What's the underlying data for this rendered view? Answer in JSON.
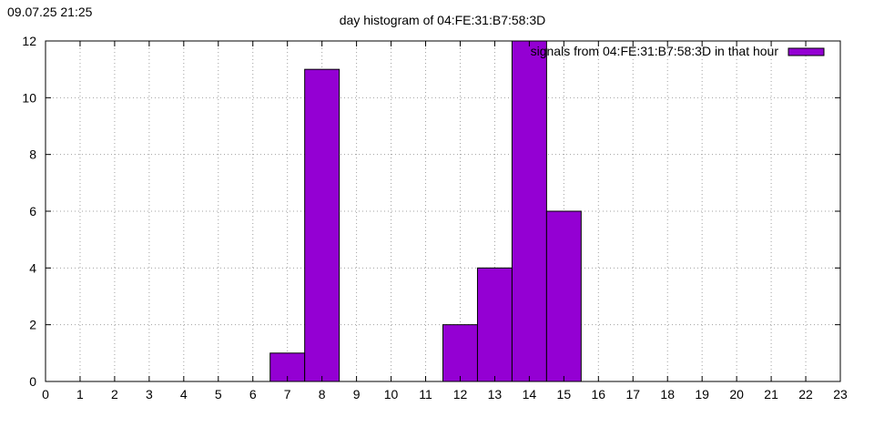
{
  "timestamp": "09.07.25 21:25",
  "chart_data": {
    "type": "bar",
    "title": "day histogram of 04:FE:31:B7:58:3D",
    "xlabel": "",
    "ylabel": "",
    "categories": [
      0,
      1,
      2,
      3,
      4,
      5,
      6,
      7,
      8,
      9,
      10,
      11,
      12,
      13,
      14,
      15,
      16,
      17,
      18,
      19,
      20,
      21,
      22
    ],
    "series": [
      {
        "name": "signals from 04:FE:31:B7:58:3D in that hour",
        "color": "#9400d3",
        "values": [
          0,
          0,
          0,
          0,
          0,
          0,
          0,
          1,
          11,
          0,
          0,
          0,
          2,
          4,
          12,
          6,
          0,
          0,
          0,
          0,
          0,
          0,
          0
        ]
      }
    ],
    "xlim": [
      0,
      23
    ],
    "ylim": [
      0,
      12
    ],
    "xticks": [
      0,
      1,
      2,
      3,
      4,
      5,
      6,
      7,
      8,
      9,
      10,
      11,
      12,
      13,
      14,
      15,
      16,
      17,
      18,
      19,
      20,
      21,
      22,
      23
    ],
    "yticks": [
      0,
      2,
      4,
      6,
      8,
      10,
      12
    ],
    "grid": true,
    "legend_position": "top-right"
  }
}
